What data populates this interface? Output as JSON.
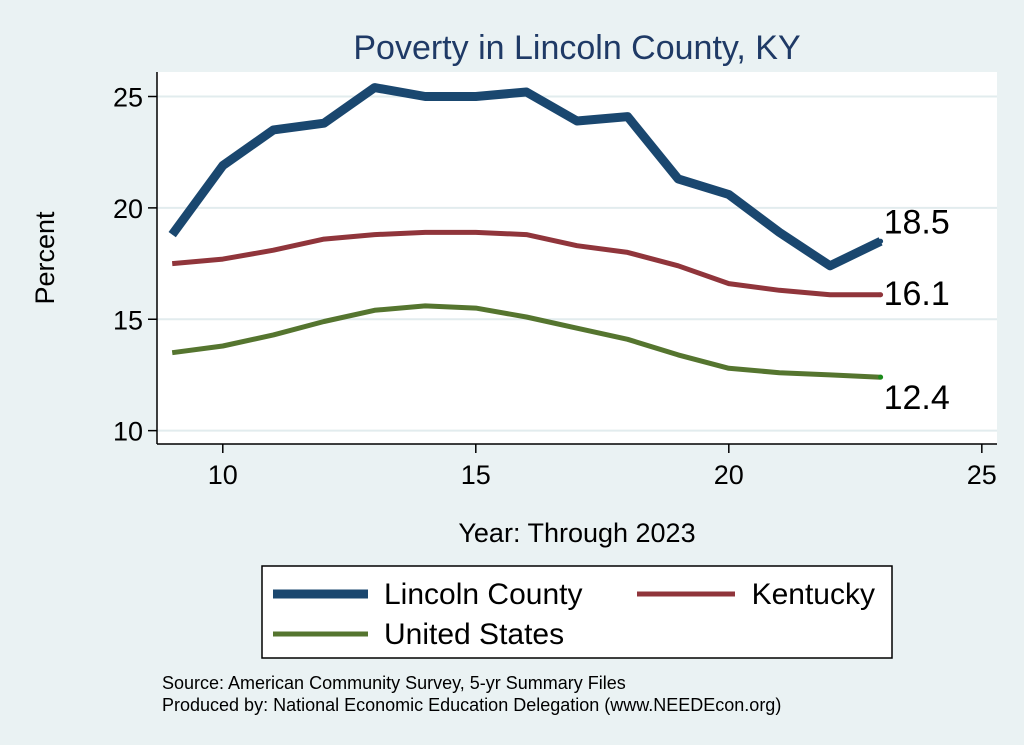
{
  "chart_data": {
    "type": "line",
    "title": "Poverty in Lincoln County, KY",
    "xlabel": "Year: Through 2023",
    "ylabel": "Percent",
    "xlim": [
      8.7,
      25.3
    ],
    "ylim": [
      9.4,
      26.1
    ],
    "xticks": [
      10,
      15,
      20,
      25
    ],
    "yticks": [
      10,
      15,
      20,
      25
    ],
    "grid": true,
    "x": [
      9,
      10,
      11,
      12,
      13,
      14,
      15,
      16,
      17,
      18,
      19,
      20,
      21,
      22,
      23
    ],
    "series": [
      {
        "name": "Lincoln County",
        "color": "#1a476f",
        "values": [
          18.8,
          21.9,
          23.5,
          23.8,
          25.4,
          25.0,
          25.0,
          25.2,
          23.9,
          24.1,
          21.3,
          20.6,
          18.9,
          17.4,
          18.5
        ],
        "end_label": "18.5"
      },
      {
        "name": "Kentucky",
        "color": "#90353b",
        "values": [
          17.5,
          17.7,
          18.1,
          18.6,
          18.8,
          18.9,
          18.9,
          18.8,
          18.3,
          18.0,
          17.4,
          16.6,
          16.3,
          16.1,
          16.1
        ],
        "end_label": "16.1"
      },
      {
        "name": "United States",
        "color": "#55752f",
        "values": [
          13.5,
          13.8,
          14.3,
          14.9,
          15.4,
          15.6,
          15.5,
          15.1,
          14.6,
          14.1,
          13.4,
          12.8,
          12.6,
          12.5,
          12.4
        ],
        "end_label": "12.4"
      }
    ],
    "legend_position": "bottom"
  },
  "source_text": "Source: American Community Survey, 5-yr Summary Files",
  "produced_text": "Produced by: National Economic Education Delegation (www.NEEDEcon.org)"
}
